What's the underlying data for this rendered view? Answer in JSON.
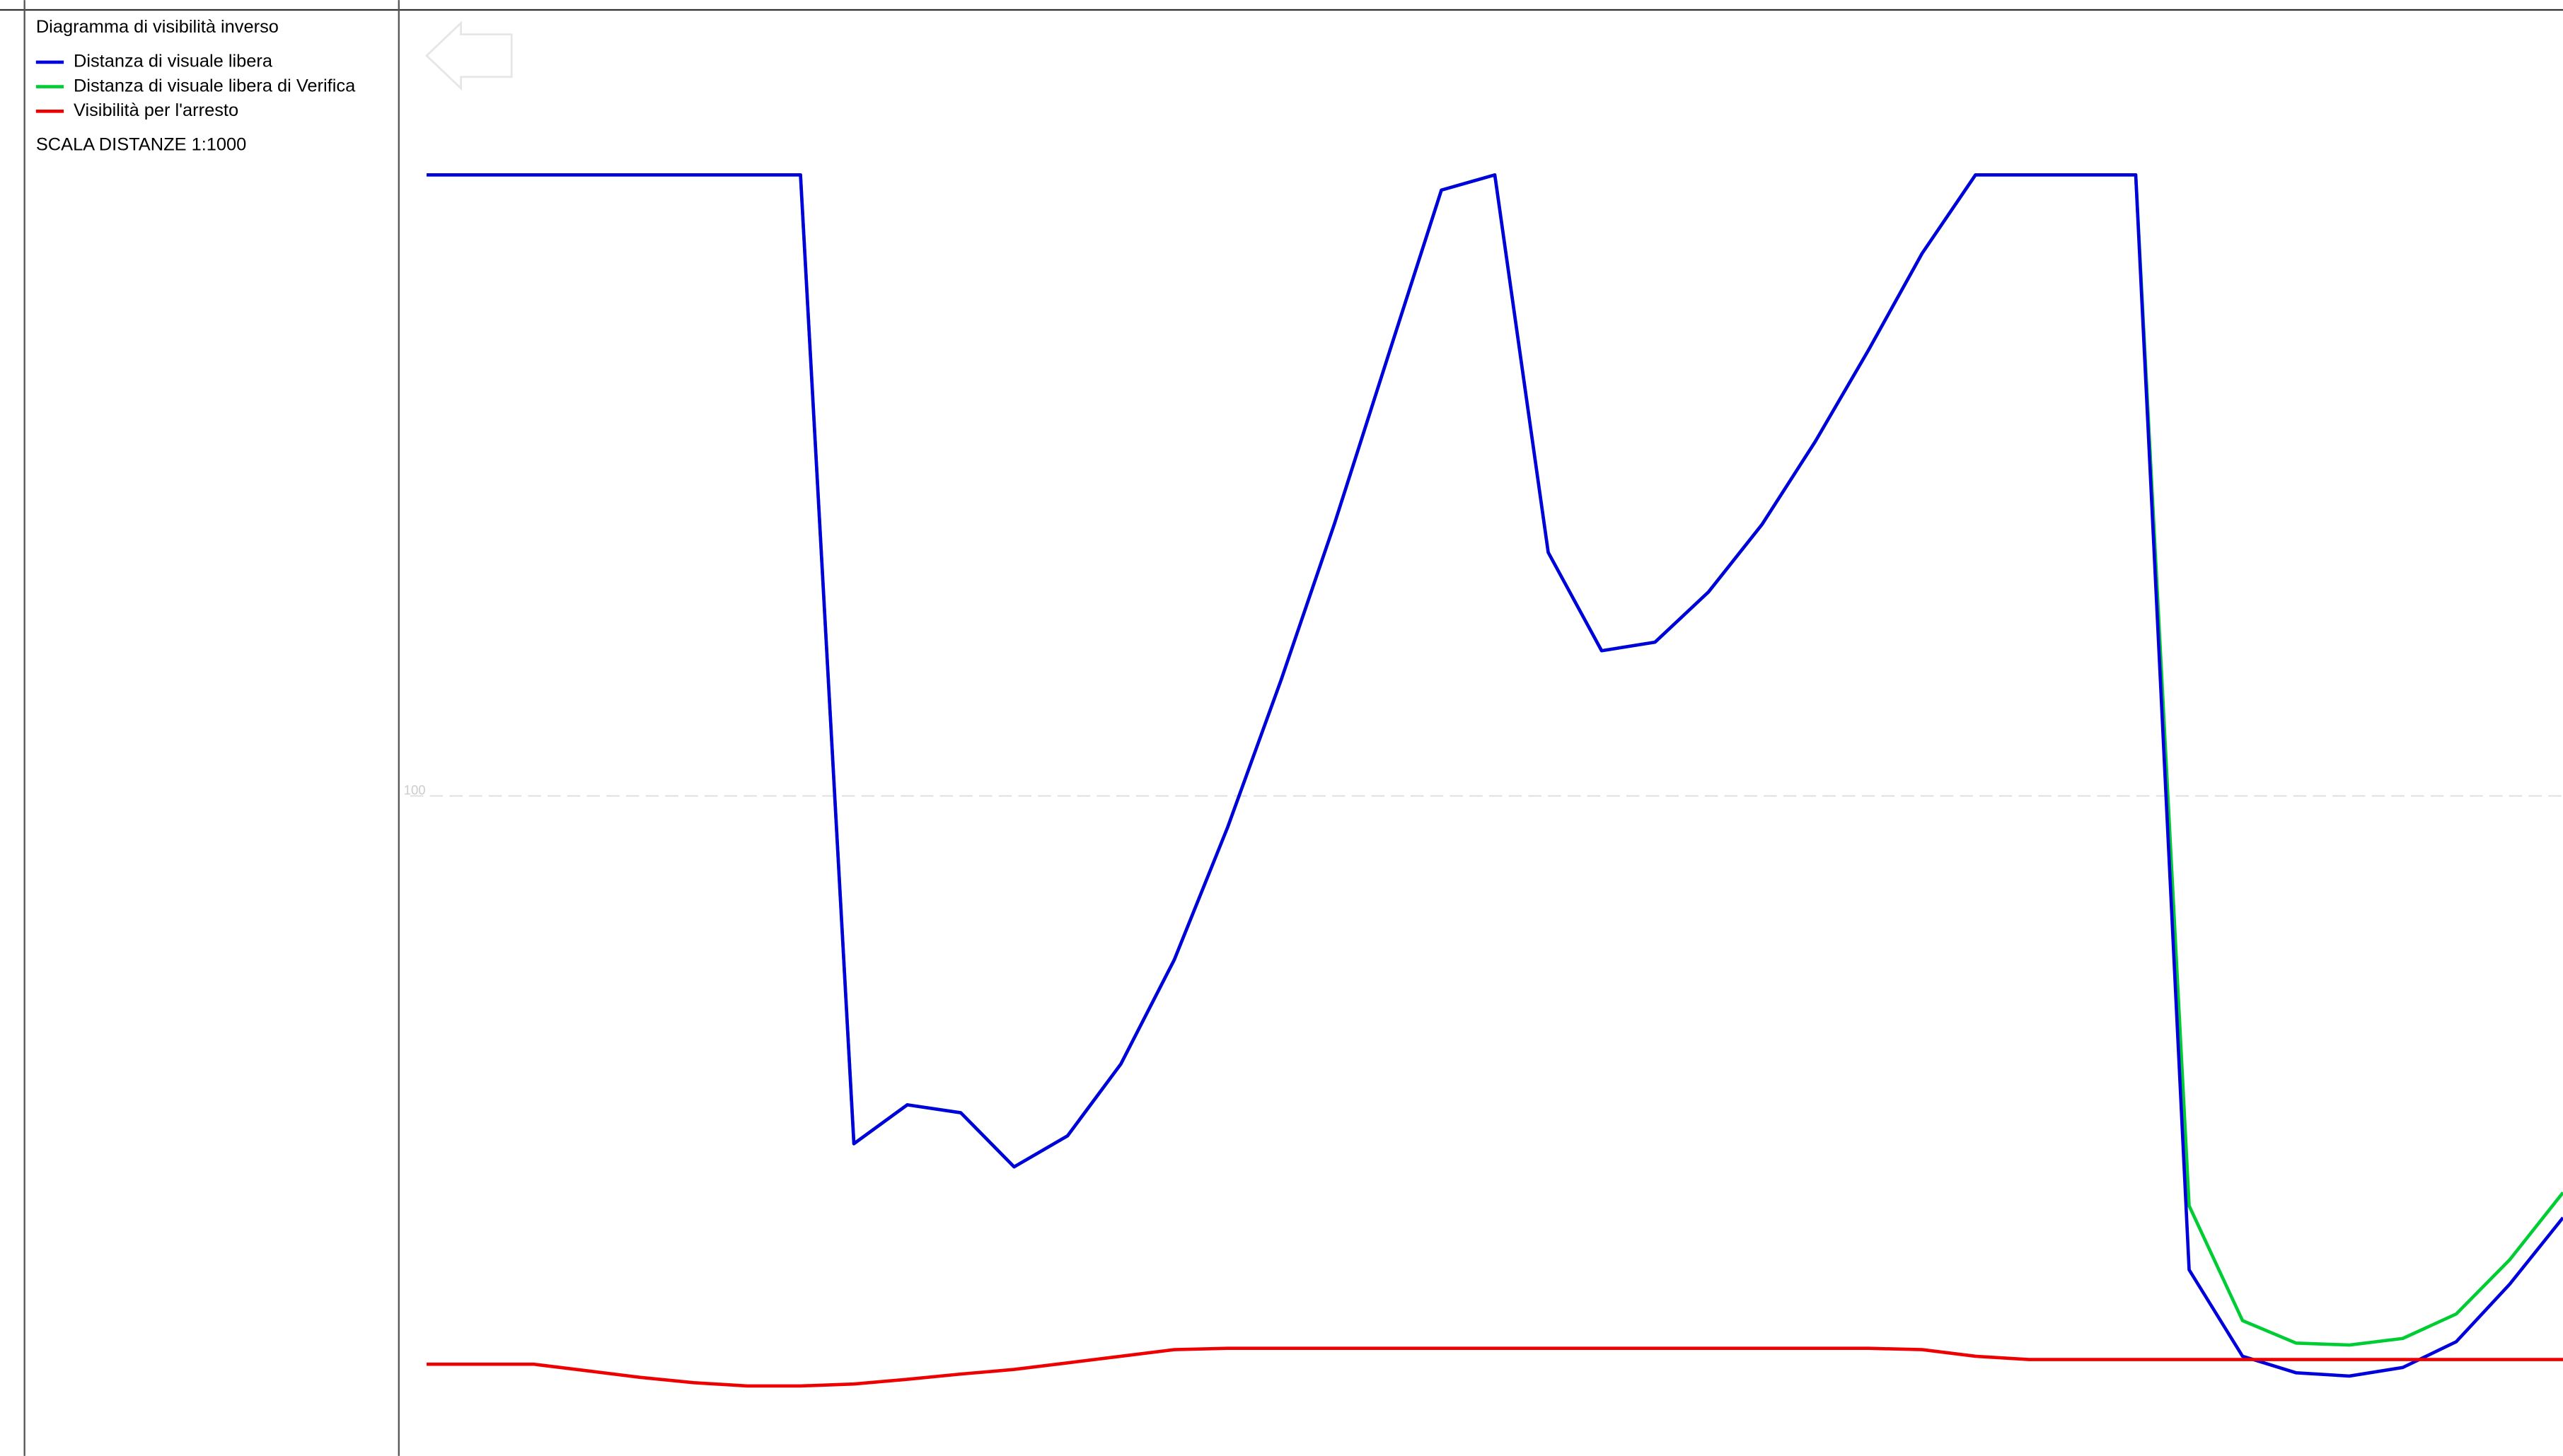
{
  "chart_data": {
    "type": "line",
    "title": "Diagramma di visibilità inverso",
    "note": "SCALA DISTANZE 1:1000",
    "x": [
      0,
      1,
      2,
      3,
      4,
      5,
      6,
      7,
      8,
      9,
      10,
      11,
      12,
      13,
      14,
      15,
      16,
      17,
      18,
      19,
      20,
      21,
      22,
      23,
      24,
      25,
      26,
      27,
      28,
      29,
      30,
      31,
      32,
      33,
      34,
      35,
      36,
      37,
      38,
      39,
      40
    ],
    "xlim": [
      0,
      40
    ],
    "ylim": [
      0,
      219.1
    ],
    "yticks": [
      100
    ],
    "grid": true,
    "series": [
      {
        "name": "Distanza di visuale libera",
        "color": "#0000dd",
        "values": [
          194.1,
          194.1,
          194.1,
          194.1,
          194.1,
          194.1,
          194.1,
          194.1,
          47.3,
          53.2,
          52.0,
          43.8,
          48.5,
          59.4,
          75.2,
          95.3,
          117.6,
          141.3,
          166.6,
          191.8,
          194.1,
          136.9,
          122.0,
          123.3,
          130.9,
          141.1,
          153.7,
          167.6,
          182.2,
          194.1,
          194.1,
          194.1,
          194.1,
          28.2,
          15.1,
          12.6,
          12.1,
          13.4,
          17.3,
          26.0,
          36.1
        ]
      },
      {
        "name": "Distanza di visuale libera di Verifica",
        "color": "#00cc33",
        "values": [
          194.1,
          194.1,
          194.1,
          194.1,
          194.1,
          194.1,
          194.1,
          194.1,
          47.3,
          53.2,
          52.0,
          43.8,
          48.5,
          59.4,
          75.2,
          95.3,
          117.6,
          141.3,
          166.6,
          191.8,
          194.1,
          136.9,
          122.0,
          123.3,
          130.9,
          141.1,
          153.7,
          167.6,
          182.2,
          194.1,
          194.1,
          194.1,
          194.1,
          37.9,
          20.5,
          17.1,
          16.8,
          17.8,
          21.5,
          29.7,
          39.9
        ]
      },
      {
        "name": "Visibilità per l'arresto",
        "color": "#ee0000",
        "values": [
          13.9,
          13.9,
          13.9,
          12.9,
          11.9,
          11.1,
          10.6,
          10.6,
          10.9,
          11.6,
          12.4,
          13.1,
          14.1,
          15.1,
          16.1,
          16.3,
          16.3,
          16.3,
          16.3,
          16.3,
          16.3,
          16.3,
          16.3,
          16.3,
          16.3,
          16.3,
          16.3,
          16.3,
          16.1,
          15.1,
          14.6,
          14.6,
          14.6,
          14.6,
          14.6,
          14.6,
          14.6,
          14.6,
          14.6,
          14.6,
          14.6
        ]
      }
    ]
  }
}
